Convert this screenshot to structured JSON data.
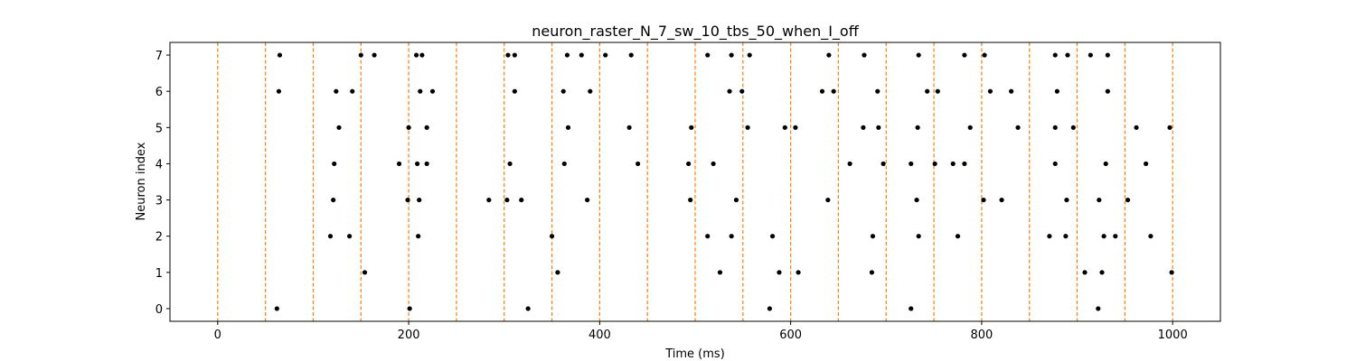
{
  "chart_data": {
    "type": "scatter",
    "title": "neuron_raster_N_7_sw_10_tbs_50_when_I_off",
    "xlabel": "Time (ms)",
    "ylabel": "Neuron index",
    "xlim": [
      -50,
      1050
    ],
    "ylim": [
      -0.35,
      7.35
    ],
    "x_ticks": [
      0,
      200,
      400,
      600,
      800,
      1000
    ],
    "y_ticks": [
      0,
      1,
      2,
      3,
      4,
      5,
      6,
      7
    ],
    "grid": false,
    "marker_color": "#000000",
    "window_boundary_color": "#ff7f0e",
    "window_boundaries": [
      0,
      50,
      100,
      150,
      200,
      250,
      300,
      350,
      400,
      450,
      500,
      550,
      600,
      650,
      700,
      750,
      800,
      850,
      900,
      950,
      1000
    ],
    "series": [
      {
        "neuron": 0,
        "spikes": [
          62,
          201,
          325,
          578,
          726,
          922
        ]
      },
      {
        "neuron": 1,
        "spikes": [
          154,
          356,
          526,
          588,
          608,
          685,
          908,
          926,
          999
        ]
      },
      {
        "neuron": 2,
        "spikes": [
          118,
          138,
          210,
          350,
          513,
          538,
          581,
          686,
          734,
          775,
          871,
          888,
          928,
          940,
          977
        ]
      },
      {
        "neuron": 3,
        "spikes": [
          121,
          199,
          211,
          284,
          303,
          318,
          387,
          495,
          543,
          639,
          732,
          802,
          821,
          889,
          923,
          953
        ]
      },
      {
        "neuron": 4,
        "spikes": [
          122,
          190,
          209,
          219,
          306,
          363,
          440,
          493,
          519,
          662,
          697,
          726,
          751,
          770,
          782,
          877,
          930,
          972
        ]
      },
      {
        "neuron": 5,
        "spikes": [
          127,
          200,
          219,
          367,
          431,
          496,
          555,
          594,
          605,
          676,
          692,
          733,
          788,
          838,
          877,
          896,
          962,
          997
        ]
      },
      {
        "neuron": 6,
        "spikes": [
          64,
          124,
          141,
          212,
          225,
          311,
          362,
          390,
          536,
          549,
          633,
          645,
          691,
          743,
          754,
          809,
          831,
          879,
          932
        ]
      },
      {
        "neuron": 7,
        "spikes": [
          65,
          150,
          164,
          208,
          214,
          304,
          311,
          366,
          381,
          406,
          433,
          513,
          538,
          557,
          640,
          677,
          734,
          782,
          803,
          877,
          890,
          914,
          932
        ]
      }
    ]
  }
}
